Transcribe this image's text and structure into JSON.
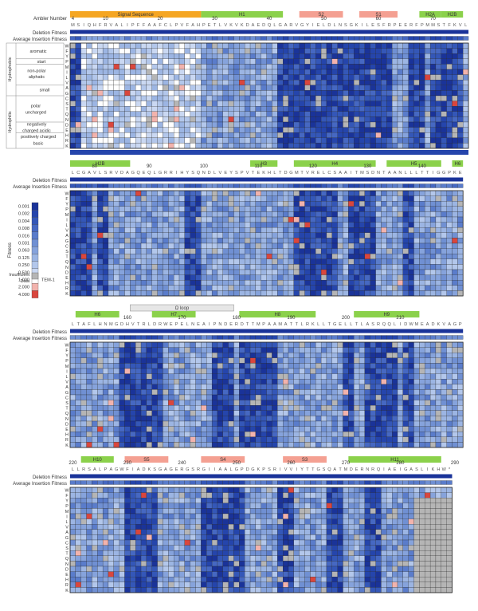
{
  "labels": {
    "ambler_number": "Ambler Number",
    "deletion_fitness": "Deletion Fitness",
    "average_insertion_fitness": "Average Insertion Fitness",
    "fitness_axis": "Fitness",
    "tem1": "TEM-1",
    "insufficient_data_line1": "Insufficient",
    "insufficient_data_line2": "Data"
  },
  "amino_acids": [
    "W",
    "F",
    "Y",
    "P",
    "M",
    "I",
    "L",
    "V",
    "A",
    "G",
    "C",
    "S",
    "T",
    "Q",
    "N",
    "D",
    "E",
    "H",
    "R",
    "K"
  ],
  "groups": {
    "hydrophobic": "Hydrophobic",
    "hydrophilic": "Hydrophilic",
    "aromatic": "aromatic",
    "start": "start",
    "non_polar_aliphatic_1": "non-polar",
    "non_polar_aliphatic_2": "aliphatic",
    "small": "small",
    "polar_uncharged_1": "polar",
    "polar_uncharged_2": "uncharged",
    "negative_1": "negatively",
    "negative_2": "charged acidic",
    "positive_1": "positively charged",
    "positive_2": "basic"
  },
  "legend": {
    "values": [
      "0.001",
      "0.002",
      "0.004",
      "0.008",
      "0.016",
      "0.031",
      "0.063",
      "0.125",
      "0.250",
      "0.500",
      "1.000",
      "2.000",
      "4.000"
    ]
  },
  "colors": {
    "scale": [
      "#1a3399",
      "#2545ac",
      "#3457b8",
      "#4668c2",
      "#5a7ccb",
      "#7090d3",
      "#86a3dc",
      "#9cb5e3",
      "#b3c7eb",
      "#cad8f2",
      "#ffffff",
      "#f2b3ad",
      "#d9463d"
    ],
    "insufficient": "#b5b5b5",
    "border": "#222222",
    "signal_sequence": "#f5a623",
    "helix": "#8bd14b",
    "strand": "#f4a092",
    "loop": "#e6e6e6"
  },
  "panels": [
    {
      "sequence": "MSIQHFRVALIPFFAAFCLPVFAHPETLVKVKDAEDQLGARVGYIELDLNSGKILESFRPEERFPMMSTFKVL",
      "ticks": [
        {
          "label": "4",
          "offset": 0
        },
        {
          "label": "10",
          "offset": 6
        },
        {
          "label": "20",
          "offset": 16
        },
        {
          "label": "30",
          "offset": 26
        },
        {
          "label": "40",
          "offset": 36
        },
        {
          "label": "50",
          "offset": 46
        },
        {
          "label": "60",
          "offset": 56
        },
        {
          "label": "70",
          "offset": 66
        }
      ],
      "features": [
        {
          "label": "Signal Sequence",
          "type": "signal_sequence",
          "start": 0,
          "end": 23
        },
        {
          "label": "H1",
          "type": "helix",
          "start": 24,
          "end": 38
        },
        {
          "label": "S2",
          "type": "strand",
          "start": 42,
          "end": 49
        },
        {
          "label": "S1",
          "type": "strand",
          "start": 53,
          "end": 59
        },
        {
          "label": "H2A",
          "type": "helix",
          "start": 64,
          "end": 67
        },
        {
          "label": "H2B",
          "type": "helix",
          "start": 68,
          "end": 71
        }
      ]
    },
    {
      "sequence": "LCGAVLSRVDAGQEQLGRRIHYSQNDLVEYSPVTEKHLTDGMTVRELCSAAITMSDNTAANLLLTTIGGPKE",
      "ticks": [
        {
          "label": "80",
          "offset": 4
        },
        {
          "label": "90",
          "offset": 14
        },
        {
          "label": "100",
          "offset": 24
        },
        {
          "label": "110",
          "offset": 34
        },
        {
          "label": "120",
          "offset": 44
        },
        {
          "label": "130",
          "offset": 54
        },
        {
          "label": "140",
          "offset": 64
        }
      ],
      "features": [
        {
          "label": "H2B",
          "type": "helix",
          "start": 0,
          "end": 10
        },
        {
          "label": "H3",
          "type": "helix",
          "start": 33,
          "end": 37
        },
        {
          "label": "H4",
          "type": "helix",
          "start": 41,
          "end": 55
        },
        {
          "label": "H5",
          "type": "helix",
          "start": 58,
          "end": 67
        },
        {
          "label": "H6",
          "type": "helix",
          "start": 70,
          "end": 71
        }
      ]
    },
    {
      "sequence": "LTAFLHNMGDHVTRLDRWEPELNEAIPNDERDTTMPAAMATTLRKLLTGELLTLASRQQLIDWMEADKVAGP",
      "ticks": [
        {
          "label": "160",
          "offset": 10
        },
        {
          "label": "170",
          "offset": 20
        },
        {
          "label": "180",
          "offset": 30
        },
        {
          "label": "190",
          "offset": 40
        },
        {
          "label": "200",
          "offset": 50
        },
        {
          "label": "210",
          "offset": 60
        }
      ],
      "features": [
        {
          "label": "H6",
          "type": "helix",
          "start": 1,
          "end": 8
        },
        {
          "label": "Ω loop",
          "type": "loop",
          "start": 11,
          "end": 29
        },
        {
          "label": "H7",
          "type": "helix",
          "start": 15,
          "end": 22
        },
        {
          "label": "H8",
          "type": "helix",
          "start": 31,
          "end": 44
        },
        {
          "label": "H9",
          "type": "helix",
          "start": 52,
          "end": 63
        }
      ]
    },
    {
      "sequence": "LLRSALPAGWFIADKSGAGERGSRGIIAALGPDGKPSRIVVIYTTGSQATMDERNRQIAEIGASLIKHW*",
      "ticks": [
        {
          "label": "220",
          "offset": 0
        },
        {
          "label": "230",
          "offset": 10
        },
        {
          "label": "240",
          "offset": 20
        },
        {
          "label": "250",
          "offset": 30
        },
        {
          "label": "260",
          "offset": 40
        },
        {
          "label": "270",
          "offset": 50
        },
        {
          "label": "280",
          "offset": 60
        },
        {
          "label": "290",
          "offset": 70
        }
      ],
      "features": [
        {
          "label": "H10",
          "type": "helix",
          "start": 2,
          "end": 7
        },
        {
          "label": "S5",
          "type": "strand",
          "start": 10,
          "end": 17
        },
        {
          "label": "S4",
          "type": "strand",
          "start": 24,
          "end": 31
        },
        {
          "label": "S3",
          "type": "strand",
          "start": 39,
          "end": 46
        },
        {
          "label": "H11",
          "type": "helix",
          "start": 51,
          "end": 67
        }
      ]
    }
  ]
}
